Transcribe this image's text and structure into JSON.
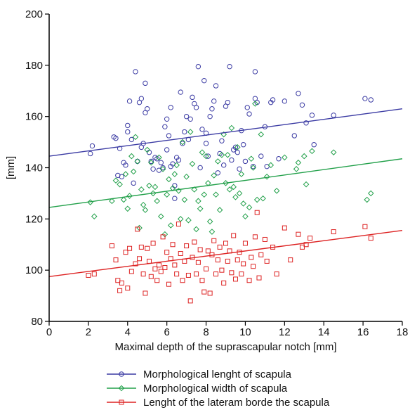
{
  "chart_data": {
    "type": "scatter",
    "title": "",
    "xlabel": "Maximal depth of the suprascapular notch [mm]",
    "ylabel": "[mm]",
    "xlim": [
      0,
      18
    ],
    "ylim": [
      80,
      200
    ],
    "xticks": [
      "0",
      "2",
      "4",
      "6",
      "8",
      "10",
      "12",
      "14",
      "16",
      "18"
    ],
    "yticks": [
      "80",
      "100",
      "120",
      "140",
      "160",
      "180",
      "200"
    ],
    "grid": false,
    "legend_position": "bottom",
    "series": [
      {
        "name": "Morphological lenght of scapula",
        "color": "#3a3aa3",
        "marker": "circle",
        "trend": [
          [
            0,
            144.5
          ],
          [
            18,
            163
          ]
        ],
        "points": [
          [
            2.1,
            145.5
          ],
          [
            2.2,
            148.5
          ],
          [
            3.3,
            152
          ],
          [
            3.4,
            151.5
          ],
          [
            3.5,
            137
          ],
          [
            3.6,
            147.5
          ],
          [
            3.7,
            136.5
          ],
          [
            3.8,
            142
          ],
          [
            3.9,
            141
          ],
          [
            4.0,
            154
          ],
          [
            4.0,
            156.5
          ],
          [
            4.1,
            166
          ],
          [
            4.2,
            151
          ],
          [
            4.3,
            134
          ],
          [
            4.4,
            177.5
          ],
          [
            4.5,
            142.5
          ],
          [
            4.6,
            165.5
          ],
          [
            4.7,
            167
          ],
          [
            4.7,
            148
          ],
          [
            4.8,
            149.5
          ],
          [
            4.9,
            173
          ],
          [
            4.9,
            161.5
          ],
          [
            5.0,
            163
          ],
          [
            5.1,
            146
          ],
          [
            5.2,
            142.5
          ],
          [
            5.3,
            139.5
          ],
          [
            5.4,
            144
          ],
          [
            5.5,
            143.5
          ],
          [
            5.6,
            139
          ],
          [
            5.7,
            142
          ],
          [
            5.8,
            140
          ],
          [
            5.9,
            156
          ],
          [
            6.0,
            159
          ],
          [
            6.0,
            147
          ],
          [
            6.1,
            152.5
          ],
          [
            6.2,
            163.5
          ],
          [
            6.2,
            140.5
          ],
          [
            6.3,
            141.5
          ],
          [
            6.4,
            133
          ],
          [
            6.4,
            128
          ],
          [
            6.5,
            144
          ],
          [
            6.6,
            143
          ],
          [
            6.7,
            169.5
          ],
          [
            6.8,
            149.5
          ],
          [
            6.9,
            154
          ],
          [
            7.0,
            160
          ],
          [
            7.1,
            151
          ],
          [
            7.2,
            159
          ],
          [
            7.3,
            167.5
          ],
          [
            7.4,
            165
          ],
          [
            7.5,
            163.5
          ],
          [
            7.6,
            179.5
          ],
          [
            7.7,
            140
          ],
          [
            7.8,
            155
          ],
          [
            7.9,
            174
          ],
          [
            8.0,
            153.5
          ],
          [
            8.0,
            149.5
          ],
          [
            8.1,
            144.5
          ],
          [
            8.2,
            160
          ],
          [
            8.3,
            163
          ],
          [
            8.4,
            166
          ],
          [
            8.5,
            172
          ],
          [
            8.6,
            138
          ],
          [
            8.7,
            145.5
          ],
          [
            8.8,
            150.5
          ],
          [
            8.9,
            141
          ],
          [
            9.0,
            164
          ],
          [
            9.1,
            165.5
          ],
          [
            9.2,
            179.5
          ],
          [
            9.3,
            143
          ],
          [
            9.4,
            147
          ],
          [
            9.5,
            148
          ],
          [
            9.6,
            146
          ],
          [
            9.7,
            139.5
          ],
          [
            9.8,
            154.5
          ],
          [
            9.9,
            149
          ],
          [
            10.0,
            142.5
          ],
          [
            10.1,
            163.5
          ],
          [
            10.2,
            161
          ],
          [
            10.4,
            140.5
          ],
          [
            10.5,
            177.5
          ],
          [
            10.5,
            167
          ],
          [
            10.6,
            165.5
          ],
          [
            10.8,
            144.5
          ],
          [
            11.0,
            156
          ],
          [
            11.1,
            140.5
          ],
          [
            11.3,
            165.5
          ],
          [
            11.4,
            166.5
          ],
          [
            11.7,
            143.5
          ],
          [
            12.0,
            166
          ],
          [
            12.5,
            152.5
          ],
          [
            12.7,
            169
          ],
          [
            12.9,
            164.5
          ],
          [
            13.1,
            157.5
          ],
          [
            13.4,
            160.5
          ],
          [
            13.5,
            149
          ],
          [
            14.5,
            160.5
          ],
          [
            16.1,
            167
          ],
          [
            16.4,
            166.5
          ]
        ]
      },
      {
        "name": "Morphological width of scapula",
        "color": "#22a04a",
        "marker": "diamond",
        "trend": [
          [
            0,
            124.5
          ],
          [
            18,
            143.5
          ]
        ],
        "points": [
          [
            2.1,
            126.5
          ],
          [
            2.3,
            121
          ],
          [
            3.2,
            127
          ],
          [
            3.4,
            135
          ],
          [
            3.6,
            133.5
          ],
          [
            3.8,
            127.5
          ],
          [
            3.9,
            137.5
          ],
          [
            4.0,
            124
          ],
          [
            4.1,
            129
          ],
          [
            4.2,
            144.5
          ],
          [
            4.3,
            138.5
          ],
          [
            4.4,
            152
          ],
          [
            4.5,
            142.5
          ],
          [
            4.6,
            116.5
          ],
          [
            4.7,
            131.5
          ],
          [
            4.8,
            125.5
          ],
          [
            4.9,
            123.5
          ],
          [
            5.0,
            147
          ],
          [
            5.1,
            133
          ],
          [
            5.2,
            142
          ],
          [
            5.3,
            130
          ],
          [
            5.4,
            132.5
          ],
          [
            5.5,
            127
          ],
          [
            5.6,
            144
          ],
          [
            5.7,
            121
          ],
          [
            5.8,
            139.5
          ],
          [
            5.9,
            114
          ],
          [
            6.0,
            129.5
          ],
          [
            6.1,
            135.5
          ],
          [
            6.2,
            117.5
          ],
          [
            6.3,
            132
          ],
          [
            6.4,
            137.5
          ],
          [
            6.5,
            141
          ],
          [
            6.6,
            131
          ],
          [
            6.7,
            120
          ],
          [
            6.8,
            150
          ],
          [
            6.9,
            127.5
          ],
          [
            7.0,
            136.5
          ],
          [
            7.1,
            119.5
          ],
          [
            7.2,
            154
          ],
          [
            7.3,
            141.5
          ],
          [
            7.4,
            131.5
          ],
          [
            7.5,
            116
          ],
          [
            7.6,
            127
          ],
          [
            7.7,
            124
          ],
          [
            7.8,
            146
          ],
          [
            7.9,
            129.5
          ],
          [
            8.0,
            144.5
          ],
          [
            8.1,
            134
          ],
          [
            8.2,
            119
          ],
          [
            8.3,
            115
          ],
          [
            8.4,
            137
          ],
          [
            8.5,
            129.5
          ],
          [
            8.6,
            142.5
          ],
          [
            8.7,
            123.5
          ],
          [
            8.8,
            145
          ],
          [
            8.9,
            153
          ],
          [
            9.0,
            134
          ],
          [
            9.1,
            145
          ],
          [
            9.2,
            131.5
          ],
          [
            9.3,
            155.5
          ],
          [
            9.4,
            132.5
          ],
          [
            9.5,
            128.5
          ],
          [
            9.6,
            148
          ],
          [
            9.7,
            130
          ],
          [
            9.8,
            137.5
          ],
          [
            9.9,
            126
          ],
          [
            10.0,
            121
          ],
          [
            10.2,
            124.5
          ],
          [
            10.3,
            143.5
          ],
          [
            10.4,
            140
          ],
          [
            10.5,
            165
          ],
          [
            10.6,
            127.5
          ],
          [
            10.8,
            153
          ],
          [
            10.9,
            128
          ],
          [
            11.1,
            136.5
          ],
          [
            11.3,
            141
          ],
          [
            11.6,
            131
          ],
          [
            12.0,
            144
          ],
          [
            12.6,
            139.5
          ],
          [
            12.7,
            142
          ],
          [
            13.0,
            144.5
          ],
          [
            13.1,
            133.5
          ],
          [
            13.4,
            146.5
          ],
          [
            14.5,
            146
          ],
          [
            16.2,
            127.5
          ],
          [
            16.4,
            130
          ]
        ]
      },
      {
        "name": "Lenght of the lateram borde the scapula",
        "color": "#dd2222",
        "marker": "square",
        "trend": [
          [
            0,
            97.5
          ],
          [
            18,
            115.5
          ]
        ],
        "points": [
          [
            2.0,
            98
          ],
          [
            2.3,
            98.5
          ],
          [
            3.2,
            109.5
          ],
          [
            3.4,
            104
          ],
          [
            3.5,
            96
          ],
          [
            3.6,
            92
          ],
          [
            3.7,
            95
          ],
          [
            3.9,
            107
          ],
          [
            4.0,
            93
          ],
          [
            4.1,
            108.5
          ],
          [
            4.2,
            99.5
          ],
          [
            4.4,
            102.5
          ],
          [
            4.5,
            116
          ],
          [
            4.6,
            104.5
          ],
          [
            4.7,
            109
          ],
          [
            4.8,
            98.5
          ],
          [
            4.9,
            91
          ],
          [
            5.0,
            108.5
          ],
          [
            5.1,
            103.5
          ],
          [
            5.2,
            97.5
          ],
          [
            5.3,
            110.5
          ],
          [
            5.4,
            100.5
          ],
          [
            5.5,
            96
          ],
          [
            5.6,
            102
          ],
          [
            5.7,
            99.5
          ],
          [
            5.8,
            113
          ],
          [
            5.9,
            101
          ],
          [
            6.0,
            107
          ],
          [
            6.1,
            94.5
          ],
          [
            6.2,
            104.5
          ],
          [
            6.3,
            110
          ],
          [
            6.4,
            102
          ],
          [
            6.5,
            98.5
          ],
          [
            6.6,
            118
          ],
          [
            6.7,
            106.5
          ],
          [
            6.8,
            96
          ],
          [
            6.9,
            103.5
          ],
          [
            7.0,
            109.5
          ],
          [
            7.1,
            98
          ],
          [
            7.2,
            88
          ],
          [
            7.3,
            105
          ],
          [
            7.4,
            111
          ],
          [
            7.5,
            98.5
          ],
          [
            7.6,
            103
          ],
          [
            7.7,
            108
          ],
          [
            7.8,
            96
          ],
          [
            7.9,
            91.5
          ],
          [
            8.0,
            100.5
          ],
          [
            8.1,
            107.5
          ],
          [
            8.2,
            91
          ],
          [
            8.3,
            106
          ],
          [
            8.4,
            111.5
          ],
          [
            8.5,
            98.5
          ],
          [
            8.6,
            104
          ],
          [
            8.7,
            109
          ],
          [
            8.8,
            100
          ],
          [
            8.9,
            95
          ],
          [
            9.0,
            110.5
          ],
          [
            9.1,
            103.5
          ],
          [
            9.2,
            107.5
          ],
          [
            9.3,
            99
          ],
          [
            9.4,
            113.5
          ],
          [
            9.5,
            96.5
          ],
          [
            9.6,
            104
          ],
          [
            9.7,
            107
          ],
          [
            9.8,
            98.5
          ],
          [
            9.9,
            102.5
          ],
          [
            10.0,
            110.5
          ],
          [
            10.2,
            96
          ],
          [
            10.3,
            105
          ],
          [
            10.4,
            101.5
          ],
          [
            10.5,
            113
          ],
          [
            10.6,
            122.5
          ],
          [
            10.7,
            97
          ],
          [
            10.8,
            106
          ],
          [
            11.0,
            112
          ],
          [
            11.1,
            103.5
          ],
          [
            11.4,
            109
          ],
          [
            11.6,
            98.5
          ],
          [
            12.0,
            116.5
          ],
          [
            12.3,
            104
          ],
          [
            12.7,
            114
          ],
          [
            12.9,
            109
          ],
          [
            13.1,
            110
          ],
          [
            13.3,
            112.5
          ],
          [
            14.5,
            115
          ],
          [
            16.1,
            117
          ],
          [
            16.4,
            112.5
          ]
        ]
      }
    ]
  }
}
